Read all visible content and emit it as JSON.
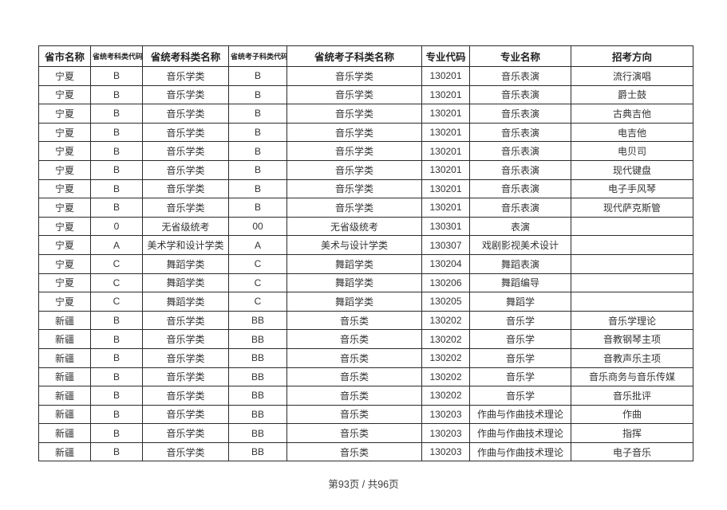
{
  "table": {
    "columns": [
      {
        "label": "省市名称",
        "small": false
      },
      {
        "label": "省统考科类代码",
        "small": true
      },
      {
        "label": "省统考科类名称",
        "small": false
      },
      {
        "label": "省统考子科类代码",
        "small": true
      },
      {
        "label": "省统考子科类名称",
        "small": false
      },
      {
        "label": "专业代码",
        "small": false
      },
      {
        "label": "专业名称",
        "small": false
      },
      {
        "label": "招考方向",
        "small": false
      }
    ],
    "rows": [
      [
        "宁夏",
        "B",
        "音乐学类",
        "B",
        "音乐学类",
        "130201",
        "音乐表演",
        "流行演唱"
      ],
      [
        "宁夏",
        "B",
        "音乐学类",
        "B",
        "音乐学类",
        "130201",
        "音乐表演",
        "爵士鼓"
      ],
      [
        "宁夏",
        "B",
        "音乐学类",
        "B",
        "音乐学类",
        "130201",
        "音乐表演",
        "古典吉他"
      ],
      [
        "宁夏",
        "B",
        "音乐学类",
        "B",
        "音乐学类",
        "130201",
        "音乐表演",
        "电吉他"
      ],
      [
        "宁夏",
        "B",
        "音乐学类",
        "B",
        "音乐学类",
        "130201",
        "音乐表演",
        "电贝司"
      ],
      [
        "宁夏",
        "B",
        "音乐学类",
        "B",
        "音乐学类",
        "130201",
        "音乐表演",
        "现代键盘"
      ],
      [
        "宁夏",
        "B",
        "音乐学类",
        "B",
        "音乐学类",
        "130201",
        "音乐表演",
        "电子手风琴"
      ],
      [
        "宁夏",
        "B",
        "音乐学类",
        "B",
        "音乐学类",
        "130201",
        "音乐表演",
        "现代萨克斯管"
      ],
      [
        "宁夏",
        "0",
        "无省级统考",
        "00",
        "无省级统考",
        "130301",
        "表演",
        ""
      ],
      [
        "宁夏",
        "A",
        "美术学和设计学类",
        "A",
        "美术与设计学类",
        "130307",
        "戏剧影视美术设计",
        ""
      ],
      [
        "宁夏",
        "C",
        "舞蹈学类",
        "C",
        "舞蹈学类",
        "130204",
        "舞蹈表演",
        ""
      ],
      [
        "宁夏",
        "C",
        "舞蹈学类",
        "C",
        "舞蹈学类",
        "130206",
        "舞蹈编导",
        ""
      ],
      [
        "宁夏",
        "C",
        "舞蹈学类",
        "C",
        "舞蹈学类",
        "130205",
        "舞蹈学",
        ""
      ],
      [
        "新疆",
        "B",
        "音乐学类",
        "BB",
        "音乐类",
        "130202",
        "音乐学",
        "音乐学理论"
      ],
      [
        "新疆",
        "B",
        "音乐学类",
        "BB",
        "音乐类",
        "130202",
        "音乐学",
        "音教钢琴主项"
      ],
      [
        "新疆",
        "B",
        "音乐学类",
        "BB",
        "音乐类",
        "130202",
        "音乐学",
        "音教声乐主项"
      ],
      [
        "新疆",
        "B",
        "音乐学类",
        "BB",
        "音乐类",
        "130202",
        "音乐学",
        "音乐商务与音乐传媒"
      ],
      [
        "新疆",
        "B",
        "音乐学类",
        "BB",
        "音乐类",
        "130202",
        "音乐学",
        "音乐批评"
      ],
      [
        "新疆",
        "B",
        "音乐学类",
        "BB",
        "音乐类",
        "130203",
        "作曲与作曲技术理论",
        "作曲"
      ],
      [
        "新疆",
        "B",
        "音乐学类",
        "BB",
        "音乐类",
        "130203",
        "作曲与作曲技术理论",
        "指挥"
      ],
      [
        "新疆",
        "B",
        "音乐学类",
        "BB",
        "音乐类",
        "130203",
        "作曲与作曲技术理论",
        "电子音乐"
      ]
    ]
  },
  "footer": {
    "page_text": "第93页 / 共96页"
  }
}
